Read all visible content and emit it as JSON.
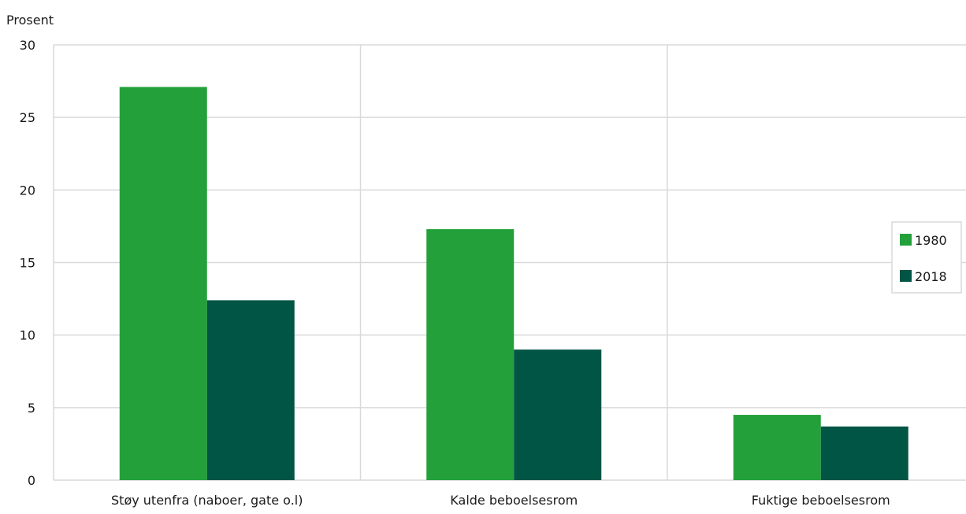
{
  "chart_data": {
    "type": "bar",
    "title": "",
    "xlabel": "",
    "ylabel": "Prosent",
    "ylim": [
      0,
      30
    ],
    "yticks": [
      0,
      5,
      10,
      15,
      20,
      25,
      30
    ],
    "categories": [
      "Støy utenfra (naboer, gate o.l)",
      "Kalde beboelsesrom",
      "Fuktige beboelsesrom"
    ],
    "series": [
      {
        "name": "1980",
        "values": [
          27.1,
          17.3,
          4.5
        ],
        "color": "#23a03a"
      },
      {
        "name": "2018",
        "values": [
          12.4,
          9.0,
          3.7
        ],
        "color": "#005545"
      }
    ],
    "grid": true,
    "legend": "right"
  }
}
